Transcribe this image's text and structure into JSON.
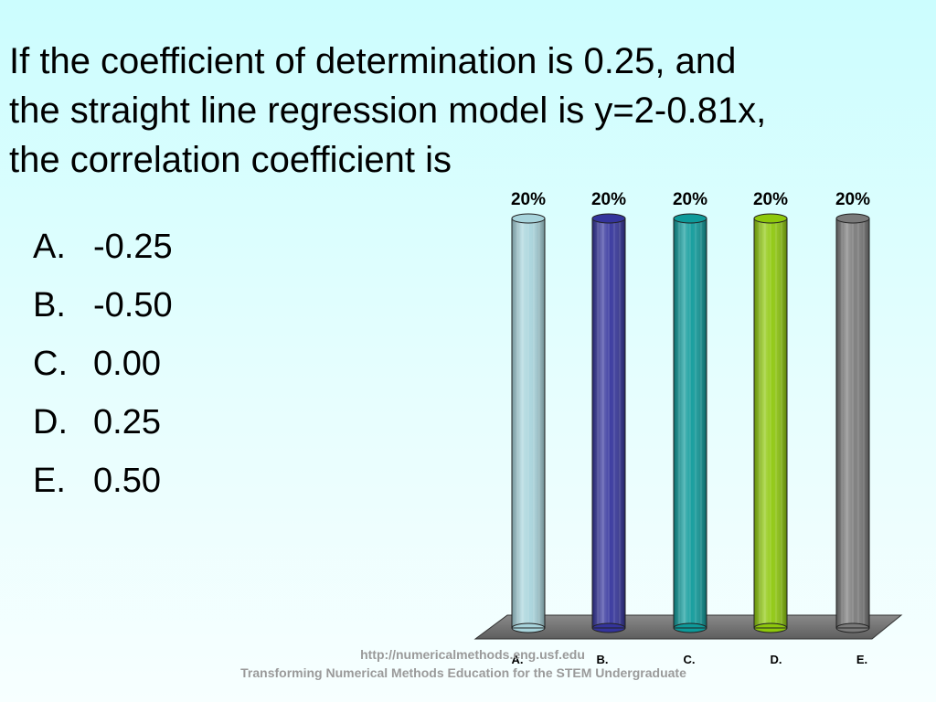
{
  "question": {
    "lines": [
      "If the coefficient of determination is 0.25, and",
      "the straight line regression model is y=2-0.81x,",
      "the correlation coefficient is"
    ]
  },
  "choices": [
    {
      "letter": "A.",
      "text": "-0.25"
    },
    {
      "letter": "B.",
      "text": "-0.50"
    },
    {
      "letter": "C.",
      "text": "0.00"
    },
    {
      "letter": "D.",
      "text": "0.25"
    },
    {
      "letter": "E.",
      "text": "0.50"
    }
  ],
  "chart_data": {
    "type": "bar",
    "categories": [
      "A.",
      "B.",
      "C.",
      "D.",
      "E."
    ],
    "values": [
      20,
      20,
      20,
      20,
      20
    ],
    "data_labels": [
      "20%",
      "20%",
      "20%",
      "20%",
      "20%"
    ],
    "ylim": [
      0,
      20
    ],
    "grid": false,
    "colors": [
      "#a8d4dc",
      "#34349c",
      "#0e9a9a",
      "#8ec80c",
      "#7a7a7a"
    ]
  },
  "footer": {
    "url": "http://numericalmethods.eng.usf.edu",
    "tagline": "Transforming Numerical Methods Education for the STEM Undergraduate"
  }
}
